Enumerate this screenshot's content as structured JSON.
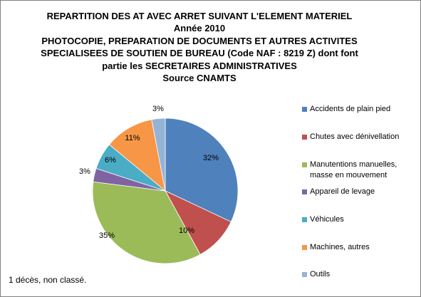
{
  "chart_data": {
    "type": "pie",
    "title_lines": [
      "REPARTITION DES AT AVEC ARRET SUIVANT L'ELEMENT MATERIEL",
      "Année 2010",
      "PHOTOCOPIE, PREPARATION DE DOCUMENTS ET AUTRES ACTIVITES",
      "SPECIALISEES DE SOUTIEN DE BUREAU (Code NAF : 8219 Z) dont font",
      "partie les SECRETAIRES ADMINISTRATIVES",
      "Source CNAMTS"
    ],
    "slices": [
      {
        "label": "Accidents de plain pied",
        "value": 32,
        "display": "32%",
        "color": "#4f81bd"
      },
      {
        "label": "Chutes avec dénivellation",
        "value": 10,
        "display": "10%",
        "color": "#c0504d"
      },
      {
        "label": "Manutentions manuelles, masse en mouvement",
        "value": 35,
        "display": "35%",
        "color": "#9bbb59"
      },
      {
        "label": "Appareil de levage",
        "value": 3,
        "display": "3%",
        "color": "#8064a2"
      },
      {
        "label": "Véhicules",
        "value": 6,
        "display": "6%",
        "color": "#4bacc6"
      },
      {
        "label": "Machines, autres",
        "value": 11,
        "display": "11%",
        "color": "#f79646"
      },
      {
        "label": "Outils",
        "value": 3,
        "display": "3%",
        "color": "#95b3d7"
      }
    ],
    "legend_position": "right",
    "footnote": "1 décès, non classé."
  }
}
